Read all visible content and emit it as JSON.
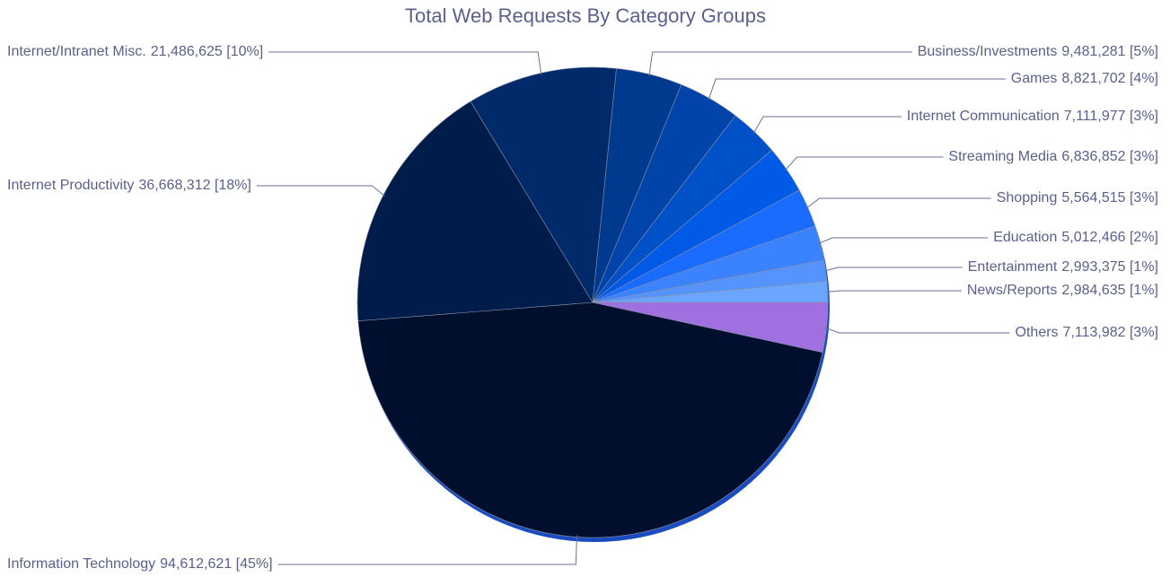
{
  "chart_data": {
    "type": "pie",
    "title": "Total Web Requests By Category Groups",
    "categories": [
      "Information Technology",
      "Internet Productivity",
      "Internet/Intranet Misc.",
      "Business/Investments",
      "Games",
      "Internet Communication",
      "Streaming Media",
      "Shopping",
      "Education",
      "Entertainment",
      "News/Reports",
      "Others"
    ],
    "values": [
      94612621,
      36668312,
      21486625,
      9481281,
      8821702,
      7111977,
      6836852,
      5564515,
      5012466,
      2993375,
      2984635,
      7113982
    ],
    "value_labels": [
      "94,612,621 [45%]",
      "36,668,312 [18%]",
      "21,486,625 [10%]",
      "9,481,281 [5%]",
      "8,821,702 [4%]",
      "7,111,977 [3%]",
      "6,836,852 [3%]",
      "5,564,515 [3%]",
      "5,012,466 [2%]",
      "2,993,375 [1%]",
      "2,984,635 [1%]",
      "7,113,982 [3%]"
    ],
    "colors": [
      "#000f2e",
      "#001c4a",
      "#002a6a",
      "#003a8f",
      "#0044aa",
      "#0050c8",
      "#005ae6",
      "#1a6cff",
      "#3b82ff",
      "#5594ff",
      "#6aa5ff",
      "#a070e0"
    ]
  }
}
